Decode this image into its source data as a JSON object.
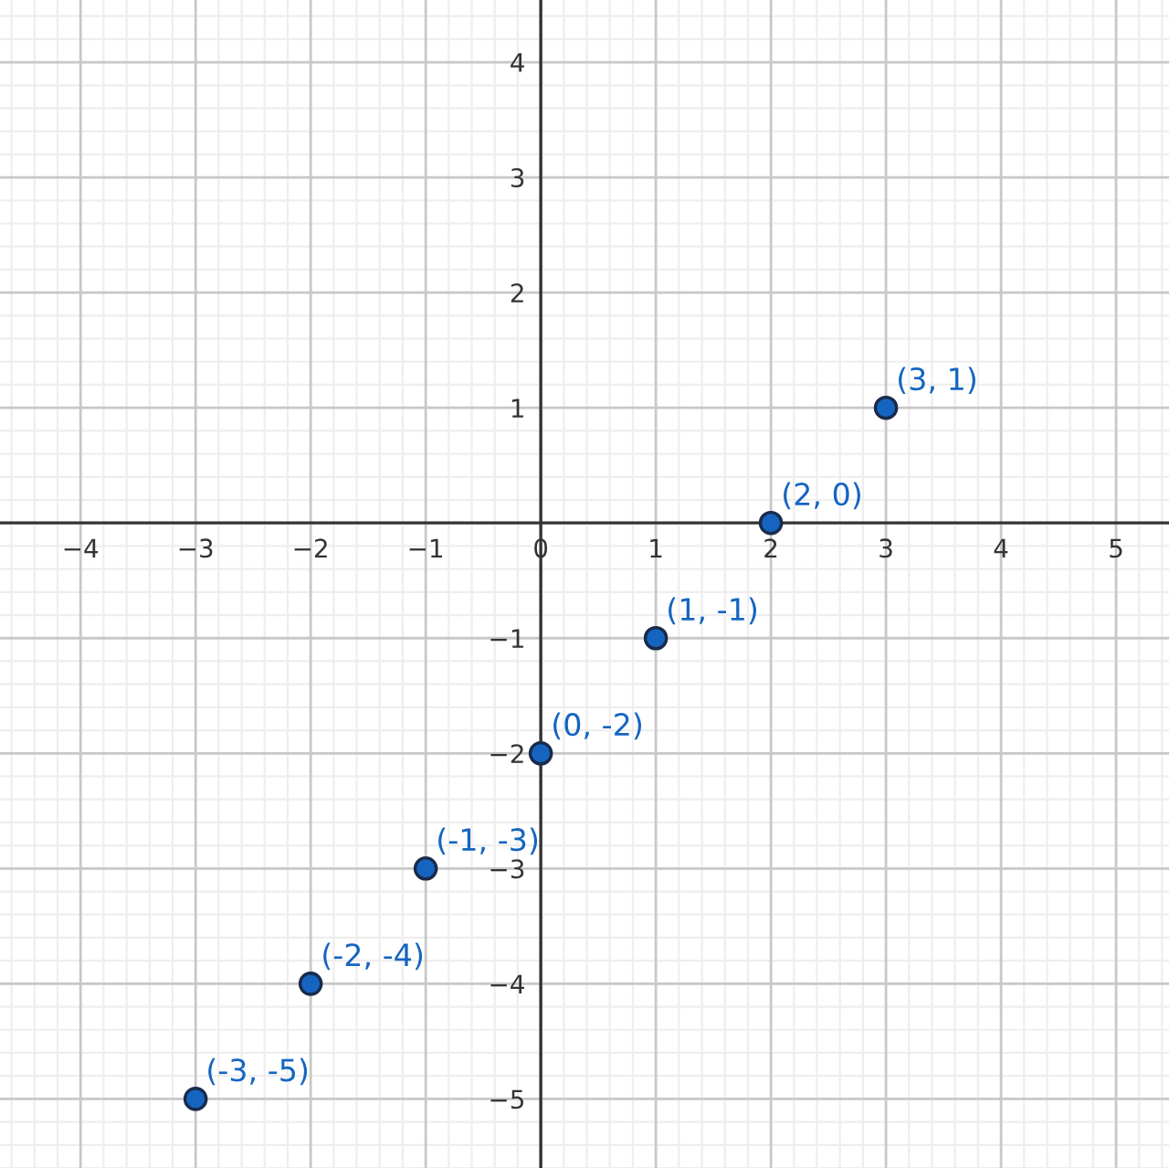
{
  "chart_data": {
    "type": "scatter",
    "x": [
      -3,
      -2,
      -1,
      0,
      1,
      2,
      3
    ],
    "series": [
      {
        "color": "#1565c0",
        "values": [
          -5,
          -4,
          -3,
          -2,
          -1,
          0,
          1
        ],
        "value_labels": [
          "(-3, -5)",
          "(-2, -4)",
          "(-1, -3)",
          "(0, -2)",
          "(1, -1)",
          "(2, 0)",
          "(3, 1)"
        ]
      }
    ],
    "marker": "circle",
    "xlim": [
      -4.7,
      5.46
    ],
    "ylim": [
      -5.6,
      4.54
    ],
    "xticks": [
      {
        "value": -4,
        "label": "−4"
      },
      {
        "value": -3,
        "label": "−3"
      },
      {
        "value": -2,
        "label": "−2"
      },
      {
        "value": -1,
        "label": "−1"
      },
      0,
      1,
      2,
      3,
      4,
      5
    ],
    "yticks": [
      {
        "value": -5,
        "label": "−5"
      },
      {
        "value": -4,
        "label": "−4"
      },
      {
        "value": -3,
        "label": "−3"
      },
      {
        "value": -2,
        "label": "−2"
      },
      {
        "value": -1,
        "label": "−1"
      },
      1,
      2,
      3,
      4
    ],
    "grid": true
  }
}
